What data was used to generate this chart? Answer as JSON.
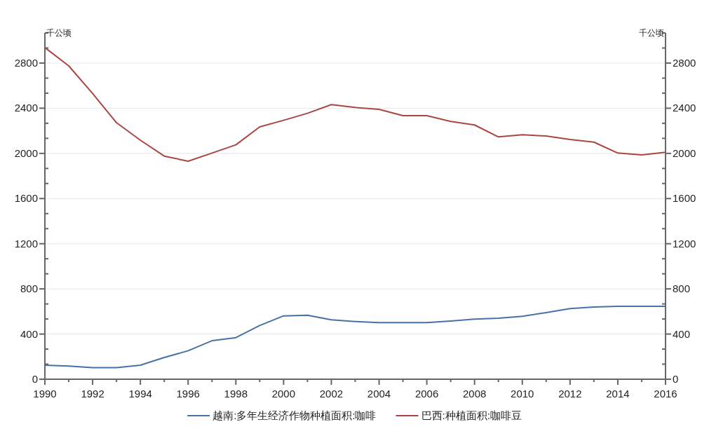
{
  "chart_data": {
    "type": "line",
    "ylabel": "千公顷",
    "y2label": "千公顷",
    "x": [
      1990,
      1991,
      1992,
      1993,
      1994,
      1995,
      1996,
      1997,
      1998,
      1999,
      2000,
      2001,
      2002,
      2003,
      2004,
      2005,
      2006,
      2007,
      2008,
      2009,
      2010,
      2011,
      2012,
      2013,
      2014,
      2015,
      2016
    ],
    "series": [
      {
        "name": "越南:多年生经济作物种植面积:咖啡",
        "color": "#4572a7",
        "values": [
          124,
          116,
          103,
          103,
          124,
          192,
          252,
          341,
          368,
          476,
          561,
          567,
          526,
          511,
          501,
          501,
          501,
          515,
          532,
          540,
          557,
          590,
          625,
          639,
          646,
          646,
          646
        ]
      },
      {
        "name": "巴西:种植面积:咖啡豆",
        "color": "#aa4643",
        "values": [
          2937,
          2775,
          2530,
          2272,
          2117,
          1976,
          1931,
          2003,
          2076,
          2235,
          2293,
          2355,
          2432,
          2407,
          2390,
          2334,
          2334,
          2283,
          2252,
          2146,
          2165,
          2154,
          2123,
          2100,
          2003,
          1987,
          2010
        ]
      }
    ],
    "xlim": [
      1990,
      2016
    ],
    "xticks": [
      1990,
      {
        "value": 1991,
        "label": null
      },
      1992,
      {
        "value": 1993,
        "label": null
      },
      1994,
      {
        "value": 1995,
        "label": null
      },
      1996,
      {
        "value": 1997,
        "label": null
      },
      1998,
      {
        "value": 1999,
        "label": null
      },
      2000,
      {
        "value": 2001,
        "label": null
      },
      2002,
      {
        "value": 2003,
        "label": null
      },
      2004,
      {
        "value": 2005,
        "label": null
      },
      2006,
      {
        "value": 2007,
        "label": null
      },
      2008,
      {
        "value": 2009,
        "label": null
      },
      2010,
      {
        "value": 2011,
        "label": null
      },
      2012,
      {
        "value": 2013,
        "label": null
      },
      2014,
      {
        "value": 2015,
        "label": null
      },
      2016
    ],
    "ylim": [
      0,
      3066.7
    ],
    "yticks": [
      0,
      {
        "value": 133.3,
        "label": null
      },
      {
        "value": 266.7,
        "label": null
      },
      400,
      {
        "value": 533.3,
        "label": null
      },
      {
        "value": 666.7,
        "label": null
      },
      800,
      {
        "value": 933.3,
        "label": null
      },
      {
        "value": 1066.7,
        "label": null
      },
      1200,
      {
        "value": 1333.3,
        "label": null
      },
      {
        "value": 1466.7,
        "label": null
      },
      1600,
      {
        "value": 1733.3,
        "label": null
      },
      {
        "value": 1866.7,
        "label": null
      },
      2000,
      {
        "value": 2133.3,
        "label": null
      },
      {
        "value": 2266.7,
        "label": null
      },
      2400,
      {
        "value": 2533.3,
        "label": null
      },
      {
        "value": 2666.7,
        "label": null
      },
      2800,
      {
        "value": 2933.3,
        "label": null
      },
      {
        "value": 3066.7,
        "label": null
      }
    ],
    "y2lim": [
      0,
      3066.7
    ],
    "y2ticks": [
      0,
      {
        "value": 133.3,
        "label": null
      },
      {
        "value": 266.7,
        "label": null
      },
      400,
      {
        "value": 533.3,
        "label": null
      },
      {
        "value": 666.7,
        "label": null
      },
      800,
      {
        "value": 933.3,
        "label": null
      },
      {
        "value": 1066.7,
        "label": null
      },
      1200,
      {
        "value": 1333.3,
        "label": null
      },
      {
        "value": 1466.7,
        "label": null
      },
      1600,
      {
        "value": 1733.3,
        "label": null
      },
      {
        "value": 1866.7,
        "label": null
      },
      2000,
      {
        "value": 2133.3,
        "label": null
      },
      {
        "value": 2266.7,
        "label": null
      },
      2400,
      {
        "value": 2533.3,
        "label": null
      },
      {
        "value": 2666.7,
        "label": null
      },
      2800,
      {
        "value": 2933.3,
        "label": null
      },
      {
        "value": 3066.7,
        "label": null
      }
    ],
    "grid": "y",
    "legend": "bottom",
    "marker": "none"
  }
}
